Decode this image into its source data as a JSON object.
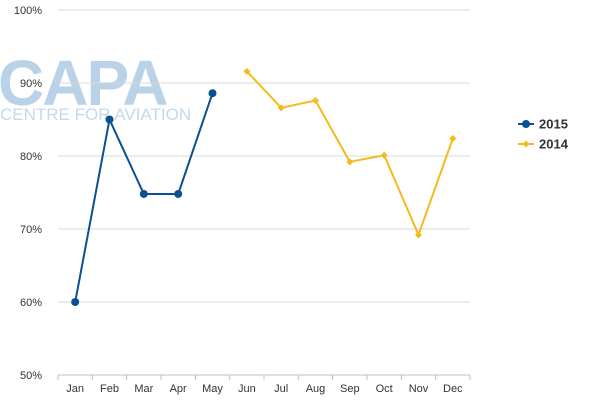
{
  "watermark": {
    "main": "CAPA",
    "sub": "CENTRE FOR AVIATION"
  },
  "chart_data": {
    "type": "line",
    "title": "",
    "xlabel": "",
    "ylabel": "",
    "categories": [
      "Jan",
      "Feb",
      "Mar",
      "Apr",
      "May",
      "Jun",
      "Jul",
      "Aug",
      "Sep",
      "Oct",
      "Nov",
      "Dec"
    ],
    "y_tick_labels": [
      "50%",
      "60%",
      "70%",
      "80%",
      "90%",
      "100%"
    ],
    "ylim": [
      50,
      100
    ],
    "y_ticks": [
      50,
      60,
      70,
      80,
      90,
      100
    ],
    "grid": "horizontal",
    "legend_position": "right",
    "series": [
      {
        "name": "2015",
        "color": "#0b4f94",
        "marker": "circle",
        "values": [
          60.0,
          85.0,
          74.8,
          74.8,
          88.6,
          null,
          null,
          null,
          null,
          null,
          null,
          null
        ]
      },
      {
        "name": "2014",
        "color": "#f4bb1c",
        "marker": "diamond",
        "values": [
          null,
          null,
          null,
          null,
          null,
          91.6,
          86.6,
          87.6,
          79.2,
          80.1,
          69.2,
          82.4
        ]
      }
    ]
  }
}
